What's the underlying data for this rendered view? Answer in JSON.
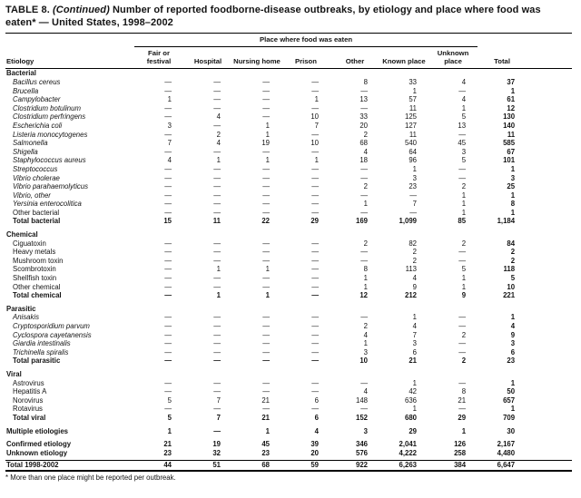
{
  "title": {
    "prefix": "TABLE 8.",
    "continued": "(Continued)",
    "rest": "Number of reported foodborne-disease outbreaks, by etiology and place where food was eaten* — United States, 1998–2002"
  },
  "table": {
    "spanner": "Place where food was eaten",
    "etiology_header": "Etiology",
    "columns": [
      "Fair or festival",
      "Hospital",
      "Nursing home",
      "Prison",
      "Other",
      "Known place",
      "Unknown place",
      "Total"
    ],
    "sections": [
      {
        "name": "Bacterial",
        "rows": [
          {
            "label": "Bacillus cereus",
            "italic": true,
            "values": [
              "—",
              "—",
              "—",
              "—",
              "8",
              "33",
              "4",
              "37"
            ]
          },
          {
            "label": "Brucella",
            "italic": true,
            "values": [
              "—",
              "—",
              "—",
              "—",
              "—",
              "1",
              "—",
              "1"
            ]
          },
          {
            "label": "Campylobacter",
            "italic": true,
            "values": [
              "1",
              "—",
              "—",
              "1",
              "13",
              "57",
              "4",
              "61"
            ]
          },
          {
            "label": "Clostridium botulinum",
            "italic": true,
            "values": [
              "—",
              "—",
              "—",
              "—",
              "—",
              "11",
              "1",
              "12"
            ]
          },
          {
            "label": "Clostridium perfringens",
            "italic": true,
            "values": [
              "—",
              "4",
              "—",
              "10",
              "33",
              "125",
              "5",
              "130"
            ]
          },
          {
            "label": "Escherichia coli",
            "italic": true,
            "values": [
              "3",
              "—",
              "1",
              "7",
              "20",
              "127",
              "13",
              "140"
            ]
          },
          {
            "label": "Listeria monocytogenes",
            "italic": true,
            "values": [
              "—",
              "2",
              "1",
              "—",
              "2",
              "11",
              "—",
              "11"
            ]
          },
          {
            "label": "Salmonella",
            "italic": true,
            "values": [
              "7",
              "4",
              "19",
              "10",
              "68",
              "540",
              "45",
              "585"
            ]
          },
          {
            "label": "Shigella",
            "italic": true,
            "values": [
              "—",
              "—",
              "—",
              "—",
              "4",
              "64",
              "3",
              "67"
            ]
          },
          {
            "label": "Staphylococcus aureus",
            "italic": true,
            "values": [
              "4",
              "1",
              "1",
              "1",
              "18",
              "96",
              "5",
              "101"
            ]
          },
          {
            "label": "Streptococcus",
            "italic": true,
            "values": [
              "—",
              "—",
              "—",
              "—",
              "—",
              "1",
              "—",
              "1"
            ]
          },
          {
            "label": "Vibrio cholerae",
            "italic": true,
            "values": [
              "—",
              "—",
              "—",
              "—",
              "—",
              "3",
              "—",
              "3"
            ]
          },
          {
            "label": "Vibrio parahaemolyticus",
            "italic": true,
            "values": [
              "—",
              "—",
              "—",
              "—",
              "2",
              "23",
              "2",
              "25"
            ]
          },
          {
            "label": "Vibrio, other",
            "italic": true,
            "values": [
              "—",
              "—",
              "—",
              "—",
              "—",
              "—",
              "1",
              "1"
            ]
          },
          {
            "label": "Yersinia enterocolitica",
            "italic": true,
            "values": [
              "—",
              "—",
              "—",
              "—",
              "1",
              "7",
              "1",
              "8"
            ]
          },
          {
            "label": "Other bacterial",
            "italic": false,
            "values": [
              "—",
              "—",
              "—",
              "—",
              "—",
              "—",
              "1",
              "1"
            ]
          },
          {
            "label": "Total bacterial",
            "italic": false,
            "bold": true,
            "values": [
              "15",
              "11",
              "22",
              "29",
              "169",
              "1,099",
              "85",
              "1,184"
            ]
          }
        ]
      },
      {
        "name": "Chemical",
        "rows": [
          {
            "label": "Ciguatoxin",
            "italic": false,
            "values": [
              "—",
              "—",
              "—",
              "—",
              "2",
              "82",
              "2",
              "84"
            ]
          },
          {
            "label": "Heavy metals",
            "italic": false,
            "values": [
              "—",
              "—",
              "—",
              "—",
              "—",
              "2",
              "—",
              "2"
            ]
          },
          {
            "label": "Mushroom toxin",
            "italic": false,
            "values": [
              "—",
              "—",
              "—",
              "—",
              "—",
              "2",
              "—",
              "2"
            ]
          },
          {
            "label": "Scombrotoxin",
            "italic": false,
            "values": [
              "—",
              "1",
              "1",
              "—",
              "8",
              "113",
              "5",
              "118"
            ]
          },
          {
            "label": "Shellfish toxin",
            "italic": false,
            "values": [
              "—",
              "—",
              "—",
              "—",
              "1",
              "4",
              "1",
              "5"
            ]
          },
          {
            "label": "Other chemical",
            "italic": false,
            "values": [
              "—",
              "—",
              "—",
              "—",
              "1",
              "9",
              "1",
              "10"
            ]
          },
          {
            "label": "Total chemical",
            "italic": false,
            "bold": true,
            "values": [
              "—",
              "1",
              "1",
              "—",
              "12",
              "212",
              "9",
              "221"
            ]
          }
        ]
      },
      {
        "name": "Parasitic",
        "rows": [
          {
            "label": "Anisakis",
            "italic": true,
            "values": [
              "—",
              "—",
              "—",
              "—",
              "—",
              "1",
              "—",
              "1"
            ]
          },
          {
            "label": "Cryptosporidium parvum",
            "italic": true,
            "values": [
              "—",
              "—",
              "—",
              "—",
              "2",
              "4",
              "—",
              "4"
            ]
          },
          {
            "label": "Cyclospora cayetanensis",
            "italic": true,
            "values": [
              "—",
              "—",
              "—",
              "—",
              "4",
              "7",
              "2",
              "9"
            ]
          },
          {
            "label": "Giardia intestinalis",
            "italic": true,
            "values": [
              "—",
              "—",
              "—",
              "—",
              "1",
              "3",
              "—",
              "3"
            ]
          },
          {
            "label": "Trichinella spiralis",
            "italic": true,
            "values": [
              "—",
              "—",
              "—",
              "—",
              "3",
              "6",
              "—",
              "6"
            ]
          },
          {
            "label": "Total parasitic",
            "italic": false,
            "bold": true,
            "values": [
              "—",
              "—",
              "—",
              "—",
              "10",
              "21",
              "2",
              "23"
            ]
          }
        ]
      },
      {
        "name": "Viral",
        "rows": [
          {
            "label": "Astrovirus",
            "italic": false,
            "values": [
              "—",
              "—",
              "—",
              "—",
              "—",
              "1",
              "—",
              "1"
            ]
          },
          {
            "label": "Hepatitis A",
            "italic": false,
            "values": [
              "—",
              "—",
              "—",
              "—",
              "4",
              "42",
              "8",
              "50"
            ]
          },
          {
            "label": "Norovirus",
            "italic": false,
            "values": [
              "5",
              "7",
              "21",
              "6",
              "148",
              "636",
              "21",
              "657"
            ]
          },
          {
            "label": "Rotavirus",
            "italic": false,
            "values": [
              "—",
              "—",
              "—",
              "—",
              "—",
              "1",
              "—",
              "1"
            ]
          },
          {
            "label": "Total viral",
            "italic": false,
            "bold": true,
            "values": [
              "5",
              "7",
              "21",
              "6",
              "152",
              "680",
              "29",
              "709"
            ]
          }
        ]
      }
    ],
    "summary_rows": [
      {
        "label": "Multiple etiologies",
        "bold": true,
        "gap_before": true,
        "values": [
          "1",
          "—",
          "1",
          "4",
          "3",
          "29",
          "1",
          "30"
        ]
      },
      {
        "label": "Confirmed etiology",
        "bold": true,
        "gap_before": true,
        "values": [
          "21",
          "19",
          "45",
          "39",
          "346",
          "2,041",
          "126",
          "2,167"
        ]
      },
      {
        "label": "Unknown etiology",
        "bold": true,
        "gap_before": false,
        "values": [
          "23",
          "32",
          "23",
          "20",
          "576",
          "4,222",
          "258",
          "4,480"
        ]
      },
      {
        "label": "Total 1998-2002",
        "bold": true,
        "gap_before": true,
        "rule_above": true,
        "thick_rule_below": true,
        "values": [
          "44",
          "51",
          "68",
          "59",
          "922",
          "6,263",
          "384",
          "6,647"
        ]
      }
    ]
  },
  "footnote": "* More than one place might be reported per outbreak."
}
